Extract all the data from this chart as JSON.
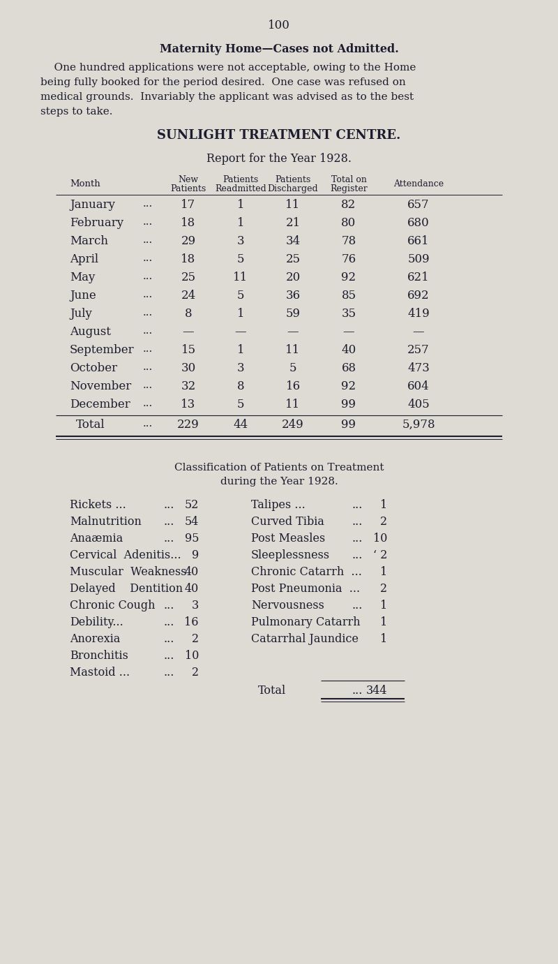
{
  "page_number": "100",
  "section_title": "Maternity Home—Cases not Admitted.",
  "para_lines": [
    "    One hundred applications were not acceptable, owing to the Home",
    "being fully booked for the period desired.  One case was refused on",
    "medical grounds.  Invariably the applicant was advised as to the best",
    "steps to take."
  ],
  "centre_title": "SUNLIGHT TREATMENT CENTRE.",
  "report_title": "Report for the Year 1928.",
  "table_rows": [
    [
      "January",
      "...",
      "17",
      "1",
      "11",
      "82",
      "657"
    ],
    [
      "February",
      "...",
      "18",
      "1",
      "21",
      "80",
      "680"
    ],
    [
      "March",
      "...",
      "29",
      "3",
      "34",
      "78",
      "661"
    ],
    [
      "April",
      "...",
      "18",
      "5",
      "25",
      "76",
      "509"
    ],
    [
      "May",
      "...",
      "25",
      "11",
      "20",
      "92",
      "621"
    ],
    [
      "June",
      "...",
      "24",
      "5",
      "36",
      "85",
      "692"
    ],
    [
      "July",
      "...",
      "8",
      "1",
      "59",
      "35",
      "419"
    ],
    [
      "August",
      "...",
      "—",
      "—",
      "—",
      "—",
      "—"
    ],
    [
      "September",
      "...",
      "15",
      "1",
      "11",
      "40",
      "257"
    ],
    [
      "October",
      "...",
      "30",
      "3",
      "5",
      "68",
      "473"
    ],
    [
      "November",
      "...",
      "32",
      "8",
      "16",
      "92",
      "604"
    ],
    [
      "December",
      "...",
      "13",
      "5",
      "11",
      "99",
      "405"
    ]
  ],
  "table_total": [
    "Total",
    "...",
    "229",
    "44",
    "249",
    "99",
    "5,978"
  ],
  "classif_title1": "Classification of Patients on Treatment",
  "classif_title2": "during the Year 1928.",
  "classif_left": [
    [
      "Rickets ...",
      "...",
      "52"
    ],
    [
      "Malnutrition",
      "...",
      "54"
    ],
    [
      "Anaæmia",
      "...",
      "95"
    ],
    [
      "Cervical  Adenitis...",
      "",
      "9"
    ],
    [
      "Muscular  Weakness",
      "",
      "40"
    ],
    [
      "Delayed    Dentition",
      "",
      "40"
    ],
    [
      "Chronic Cough",
      "...",
      "3"
    ],
    [
      "Debility...",
      "...",
      "16"
    ],
    [
      "Anorexia",
      "...",
      "2"
    ],
    [
      "Bronchitis",
      "...",
      "10"
    ],
    [
      "Mastoid ...",
      "...",
      "2"
    ]
  ],
  "classif_right": [
    [
      "Talipes ...",
      "...",
      "1"
    ],
    [
      "Curved Tibia",
      "...",
      "2"
    ],
    [
      "Post Measles",
      "...",
      "10"
    ],
    [
      "Sleeplessness",
      "...",
      "‘ 2"
    ],
    [
      "Chronic Catarrh  ...",
      "",
      "1"
    ],
    [
      "Post Pneumonia  ...",
      "",
      "2"
    ],
    [
      "Nervousness",
      "...",
      "1"
    ],
    [
      "Pulmonary Catarrh",
      "",
      "1"
    ],
    [
      "Catarrhal Jaundice",
      "",
      "1"
    ],
    [
      "",
      "",
      ""
    ],
    [
      "",
      "",
      ""
    ]
  ],
  "classif_total_label": "Total",
  "classif_total_dots": "...",
  "classif_total_value": "344",
  "bg_color": "#dddbd4",
  "text_color": "#1c1c2e"
}
